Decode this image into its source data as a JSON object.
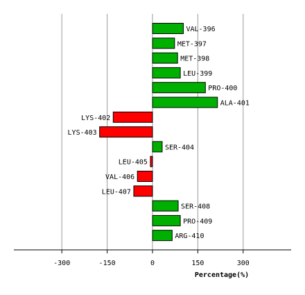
{
  "chart_data": {
    "type": "bar",
    "orientation": "horizontal",
    "xlabel": "Percentage(%)",
    "ylabel": "",
    "xlim": [
      -455,
      455
    ],
    "xticks": [
      -300,
      -150,
      0,
      150,
      300
    ],
    "xtick_labels": [
      "-300",
      "-150",
      "0",
      "150",
      "300"
    ],
    "grid": true,
    "legend": "none",
    "categories": [
      "VAL-396",
      "MET-397",
      "MET-398",
      "LEU-399",
      "PRO-400",
      "ALA-401",
      "LYS-402",
      "LYS-403",
      "SER-404",
      "LEU-405",
      "VAL-406",
      "LEU-407",
      "SER-408",
      "PRO-409",
      "ARG-410"
    ],
    "values": [
      102,
      73,
      83,
      92,
      175,
      215,
      -130,
      -175,
      32,
      -7,
      -50,
      -62,
      85,
      92,
      65
    ],
    "colors": {
      "positive": "#00b000",
      "negative": "#ff0000",
      "bar_edge": "#000000",
      "grid": "#999999",
      "axis": "#000000"
    }
  }
}
